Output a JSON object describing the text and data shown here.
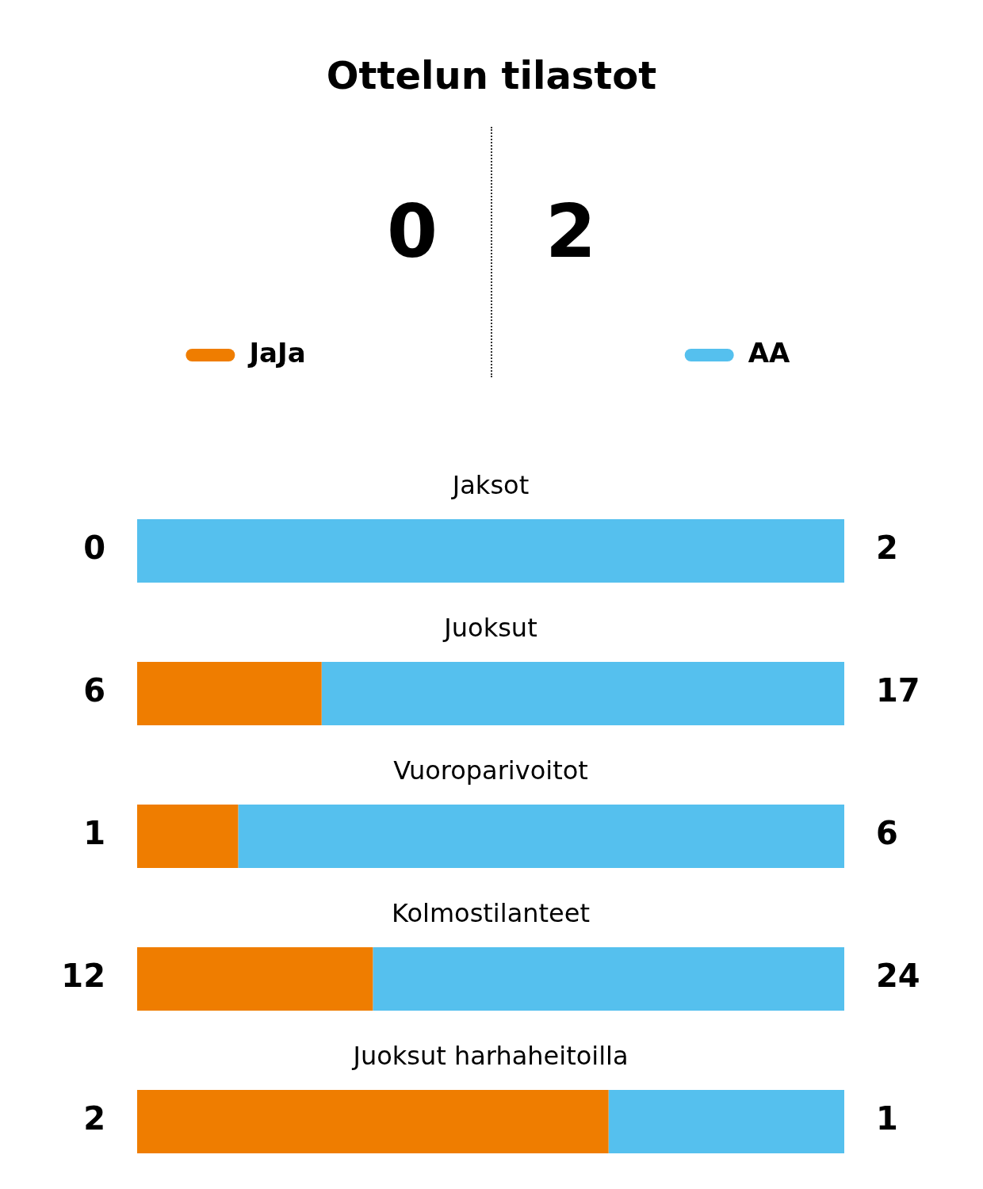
{
  "chart_data": [
    {
      "type": "bar",
      "title": "Ottelun tilastot",
      "orientation": "horizontal",
      "stacked": true,
      "data_labels": true,
      "legend": "top",
      "annotations": [
        "0",
        "2"
      ],
      "categories": [
        "Jaksot"
      ],
      "series": [
        {
          "name": "JaJa",
          "color": "#ef7d00",
          "values": [
            0
          ]
        },
        {
          "name": "AA",
          "color": "#55c0ee",
          "values": [
            2
          ]
        }
      ]
    },
    {
      "type": "bar",
      "orientation": "horizontal",
      "stacked": true,
      "data_labels": true,
      "categories": [
        "Juoksut"
      ],
      "series": [
        {
          "color": "#ef7d00",
          "values": [
            6
          ]
        },
        {
          "color": "#55c0ee",
          "values": [
            17
          ]
        }
      ]
    },
    {
      "type": "bar",
      "orientation": "horizontal",
      "stacked": true,
      "data_labels": true,
      "categories": [
        "Vuoroparivoitot"
      ],
      "series": [
        {
          "color": "#ef7d00",
          "values": [
            1
          ]
        },
        {
          "color": "#55c0ee",
          "values": [
            6
          ]
        }
      ]
    },
    {
      "type": "bar",
      "orientation": "horizontal",
      "stacked": true,
      "data_labels": true,
      "categories": [
        "Kolmostilanteet"
      ],
      "series": [
        {
          "color": "#ef7d00",
          "values": [
            12
          ]
        },
        {
          "color": "#55c0ee",
          "values": [
            24
          ]
        }
      ]
    },
    {
      "type": "bar",
      "orientation": "horizontal",
      "stacked": true,
      "data_labels": true,
      "categories": [
        "Juoksut harhaheitoilla"
      ],
      "series": [
        {
          "color": "#ef7d00",
          "values": [
            2
          ]
        },
        {
          "color": "#55c0ee",
          "values": [
            1
          ]
        }
      ]
    }
  ]
}
